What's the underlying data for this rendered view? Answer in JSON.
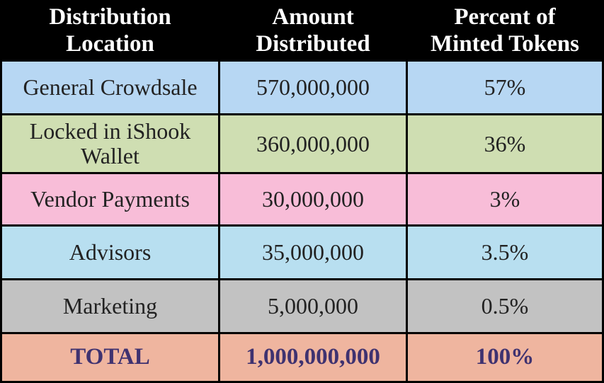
{
  "headers": [
    "Distribution Location",
    "Amount Distributed",
    "Percent of Minted Tokens"
  ],
  "header_lines": [
    [
      "Distribution",
      "Location"
    ],
    [
      "Amount",
      "Distributed"
    ],
    [
      "Percent of",
      "Minted Tokens"
    ]
  ],
  "rows": [
    {
      "location": "General Crowdsale",
      "location_lines": [
        "General Crowdsale"
      ],
      "amount": "570,000,000",
      "percent": "57%",
      "color": "#b7d7f3"
    },
    {
      "location": "Locked in iShook Wallet",
      "location_lines": [
        "Locked in iShook",
        "Wallet"
      ],
      "amount": "360,000,000",
      "percent": "36%",
      "color": "#cfdeb2"
    },
    {
      "location": "Vendor Payments",
      "location_lines": [
        "Vendor Payments"
      ],
      "amount": "30,000,000",
      "percent": "3%",
      "color": "#f8bdd8"
    },
    {
      "location": "Advisors",
      "location_lines": [
        "Advisors"
      ],
      "amount": "35,000,000",
      "percent": "3.5%",
      "color": "#b8dff0"
    },
    {
      "location": "Marketing",
      "location_lines": [
        "Marketing"
      ],
      "amount": "5,000,000",
      "percent": "0.5%",
      "color": "#c2c2c2"
    }
  ],
  "total": {
    "label": "TOTAL",
    "amount": "1,000,000,000",
    "percent": "100%",
    "color": "#efb59f",
    "text_color": "#3f3270"
  }
}
